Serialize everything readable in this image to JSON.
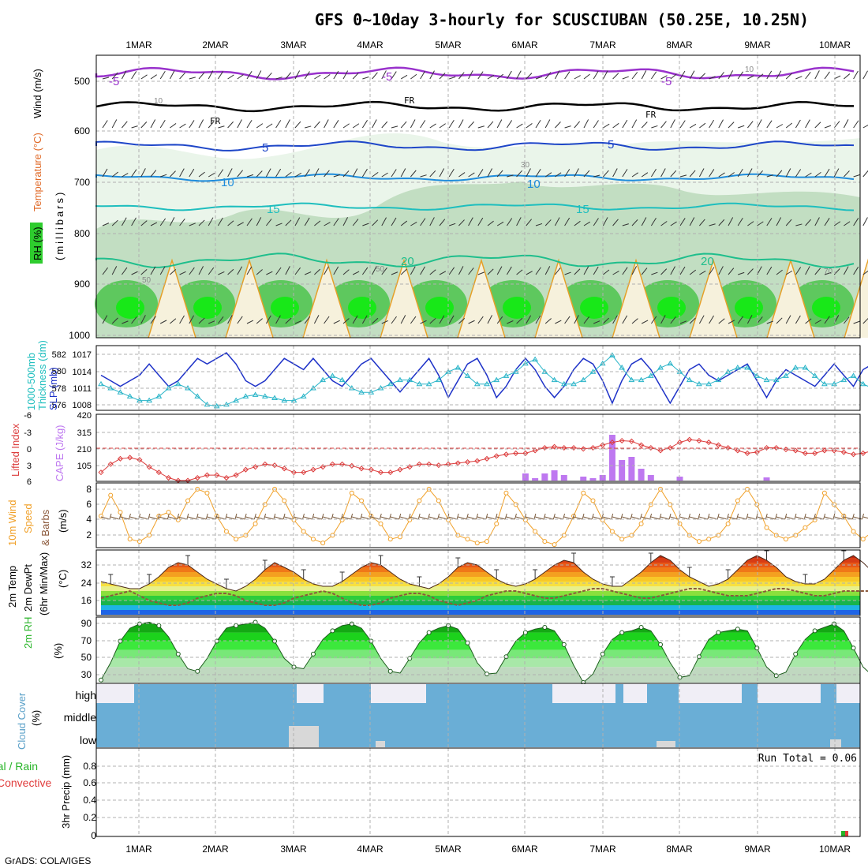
{
  "title": "GFS 0~10day 3-hourly for SCUSCIUBAN (50.25E, 10.25N)",
  "credit": "GrADS: COLA/IGES",
  "run_total": "Run Total = 0.06",
  "colors": {
    "frame": "#000000",
    "grid": "#b0b0b0",
    "rh_light": "#e8f4e8",
    "rh_mid": "#b8d8b8",
    "rh_dark": "#4cc44c",
    "rh_bright": "#18e818",
    "temp_m5": "#9932cc",
    "temp_fr": "#000000",
    "temp_5": "#1e46c8",
    "temp_10": "#1e8cdc",
    "temp_15": "#1ebebe",
    "temp_20": "#1ebe8c",
    "temp_25": "#e6a028",
    "temp_30": "#d22896",
    "slp": "#1e32c8",
    "thickness": "#28b4c8",
    "lifted_index": "#dc3c3c",
    "cape": "#be78f0",
    "wind_speed": "#f0a028",
    "wind_barbs": "#7a5a3c",
    "dewpoint": "#8c5a3c",
    "rh2m": "#28c828",
    "cloud": "#6aaed6",
    "precip_total": "#28b428",
    "precip_conv": "#e03c3c"
  },
  "date_labels": [
    "1MAR",
    "2MAR",
    "3MAR",
    "4MAR",
    "5MAR",
    "6MAR",
    "7MAR",
    "8MAR",
    "9MAR",
    "10MAR"
  ],
  "panels": {
    "profile": {
      "ylabel_wind": "Wind (m/s)",
      "ylabel_temp": "Temperature (°C)",
      "ylabel_rh": "RH (%)",
      "ylabel_mb": "(millibars)",
      "levels": [
        "500",
        "600",
        "700",
        "800",
        "900",
        "1000"
      ],
      "contour_labels": [
        "-5",
        "FR",
        "5",
        "10",
        "15",
        "20"
      ],
      "rh_labels": [
        "10",
        "30",
        "50",
        "70"
      ]
    },
    "slp": {
      "ylabel_a": "1000-500mb",
      "ylabel_b": "Thickness (dm)",
      "ylabel_c": "SLP (mb)",
      "left_ticks": [
        "582",
        "580",
        "578",
        "576"
      ],
      "right_ticks": [
        "1017",
        "1014",
        "1011",
        "1008"
      ]
    },
    "cape": {
      "ylabel_a": "Lifted Index",
      "ylabel_b": "CAPE (J/kg)",
      "left_ticks": [
        "-6",
        "-3",
        "0",
        "3",
        "6"
      ],
      "right_ticks": [
        "420",
        "315",
        "210",
        "105"
      ]
    },
    "wind": {
      "ylabel_a": "10m Wind",
      "ylabel_b": "Speed",
      "ylabel_c": "& Barbs",
      "ylabel_d": "(m/s)",
      "ticks": [
        "8",
        "6",
        "4",
        "2"
      ]
    },
    "temp": {
      "ylabel_a": "2m Temp",
      "ylabel_b": "2m DewPt",
      "ylabel_c": "(6hr Min/Max)",
      "ylabel_d": "(°C)",
      "ticks": [
        "32",
        "24",
        "16"
      ]
    },
    "rh": {
      "ylabel_a": "2m RH",
      "ylabel_b": "(%)",
      "ticks": [
        "90",
        "70",
        "50",
        "30"
      ]
    },
    "cloud": {
      "ylabel_a": "Cloud Cover",
      "ylabel_b": "(%)",
      "levels": [
        "high",
        "middle",
        "low"
      ]
    },
    "precip": {
      "ylabel_a": "Total / Rain",
      "ylabel_b": "Convective",
      "ylabel_c": "3hr Precip (mm)",
      "ticks": [
        "0.8",
        "0.6",
        "0.4",
        "0.2",
        "0"
      ]
    }
  },
  "chart_data": [
    {
      "type": "line",
      "title": "1000-500mb Thickness (dm) / SLP (mb)",
      "x_unit": "3-hourly steps from 00Z 1MAR",
      "series": [
        {
          "name": "SLP (mb)",
          "axis": "right",
          "ylim": [
            1007,
            1018
          ],
          "values": [
            1013,
            1012,
            1011,
            1012,
            1013,
            1015,
            1013,
            1011,
            1012,
            1014,
            1016,
            1015,
            1016,
            1017,
            1015,
            1012,
            1011,
            1012,
            1014,
            1016,
            1015,
            1014,
            1016,
            1014,
            1012,
            1011,
            1013,
            1015,
            1016,
            1014,
            1012,
            1010,
            1012,
            1014,
            1016,
            1013,
            1009,
            1012,
            1015,
            1016,
            1013,
            1009,
            1011,
            1014,
            1016,
            1014,
            1011,
            1009,
            1011,
            1014,
            1016,
            1015,
            1012,
            1008,
            1012,
            1015,
            1016,
            1014,
            1011,
            1008,
            1011,
            1014,
            1015,
            1013,
            1012,
            1013,
            1014,
            1015,
            1012,
            1009,
            1012,
            1014,
            1013,
            1012,
            1011,
            1013,
            1015,
            1013,
            1011,
            1014,
            1015,
            1016
          ]
        },
        {
          "name": "Thickness (dm)",
          "axis": "left",
          "ylim": [
            575.5,
            583
          ],
          "values": [
            578.5,
            578,
            577.5,
            577,
            576.5,
            576.5,
            577,
            578,
            578.5,
            578,
            577,
            576,
            575.8,
            576,
            576.5,
            577,
            577.2,
            577,
            576.8,
            576.5,
            576.5,
            577,
            578,
            579,
            579.5,
            579,
            578,
            577.5,
            577.5,
            578,
            578.5,
            579,
            579,
            578.5,
            578.5,
            579,
            580,
            580.5,
            579.5,
            578.5,
            578.5,
            579,
            579.5,
            580,
            581,
            581.5,
            580,
            579,
            578.5,
            578.5,
            579,
            580,
            581,
            582,
            580.5,
            579,
            579,
            579.5,
            580.5,
            581,
            580,
            579,
            578.5,
            578.5,
            579,
            580,
            580.5,
            580.5,
            579.5,
            579,
            579,
            579.5,
            580.5,
            580.5,
            579.5,
            578.5,
            578.5,
            579,
            579.5,
            578.5,
            578,
            578.5
          ]
        }
      ]
    },
    {
      "type": "bar",
      "title": "CAPE (J/kg)",
      "categories": [
        "6MAR 15Z",
        "6MAR 18Z",
        "6MAR 21Z",
        "7MAR 00Z",
        "7MAR 03Z",
        "7MAR 09Z",
        "7MAR 12Z",
        "7MAR 15Z",
        "7MAR 18Z",
        "7MAR 21Z",
        "8MAR 00Z",
        "8MAR 03Z",
        "8MAR 06Z",
        "8MAR 15Z",
        "9MAR 12Z"
      ],
      "values": [
        45,
        15,
        45,
        65,
        35,
        25,
        15,
        35,
        290,
        130,
        150,
        75,
        35,
        25,
        20
      ],
      "ylim": [
        0,
        420
      ]
    },
    {
      "type": "line",
      "title": "Lifted Index",
      "ylim": [
        6,
        -6
      ],
      "values": [
        4.5,
        3,
        2,
        1.8,
        2.2,
        3.5,
        4.5,
        5.5,
        6,
        6,
        5.5,
        5,
        5,
        5.5,
        5,
        4,
        3.5,
        3,
        3.2,
        3.8,
        4.5,
        4.5,
        4,
        3.5,
        3,
        3,
        3.3,
        3.8,
        4,
        4.5,
        4.5,
        4,
        3.5,
        3,
        3,
        3.2,
        3,
        2.8,
        2.6,
        2.4,
        2,
        1.5,
        1.2,
        1,
        1,
        0.5,
        0,
        -0.2,
        0,
        0,
        0.2,
        0,
        -0.5,
        -1,
        -1.3,
        -1.2,
        -0.5,
        0,
        0.5,
        0,
        -1,
        -1.5,
        -1.3,
        -1,
        -0.5,
        0,
        0.5,
        1,
        0.8,
        0,
        0,
        0.3,
        0.5,
        1,
        1,
        0.5,
        0.5,
        0.8,
        1.2,
        1,
        0.5,
        0.5
      ]
    },
    {
      "type": "line",
      "title": "10m Wind Speed (m/s)",
      "ylim": [
        0.5,
        8.7
      ],
      "values": [
        4.5,
        7.2,
        5,
        1.5,
        1.2,
        2,
        4.5,
        5,
        4,
        6.5,
        8,
        7.5,
        4.5,
        2.5,
        1.5,
        2,
        3.5,
        6,
        8,
        6.5,
        4,
        2.5,
        1.5,
        1,
        2,
        4,
        7.5,
        6.5,
        4.5,
        3.5,
        1.5,
        1.8,
        4,
        6.5,
        8,
        6.5,
        4,
        2,
        1.5,
        1,
        1.2,
        3.5,
        7.5,
        6,
        4,
        2.5,
        1.2,
        0.8,
        2,
        4.5,
        7.5,
        6.5,
        4,
        2.5,
        1.5,
        2,
        3.5,
        6,
        8,
        6,
        3.5,
        2,
        1.2,
        1.5,
        2,
        3.5,
        6.5,
        8,
        6,
        3,
        2,
        1.5,
        2,
        3,
        4,
        7.5,
        6,
        4.5,
        2.5,
        1.5,
        2.5,
        3
      ]
    },
    {
      "type": "area",
      "title": "2m Temp / 2m DewPt (°C)",
      "ylim": [
        10,
        37
      ],
      "series": [
        {
          "name": "2m Temp",
          "values": [
            24,
            23,
            22,
            21,
            21,
            23,
            26,
            30,
            32,
            31,
            28,
            25,
            23,
            21,
            20,
            22,
            25,
            29,
            32,
            30,
            28,
            25,
            23,
            22,
            22,
            24,
            27,
            30,
            32,
            31,
            28,
            25,
            23,
            22,
            21,
            23,
            26,
            30,
            32,
            31,
            28,
            25,
            23,
            22,
            23,
            25,
            28,
            31,
            33,
            32,
            28,
            25,
            23,
            22,
            22,
            25,
            28,
            32,
            35,
            33,
            29,
            26,
            24,
            22,
            23,
            25,
            29,
            33,
            35,
            33,
            30,
            26,
            24,
            23,
            23,
            25,
            29,
            33,
            35,
            32,
            28,
            25
          ]
        },
        {
          "name": "2m DewPt",
          "values": [
            17,
            18,
            19,
            20,
            18,
            16,
            15,
            14,
            14,
            15,
            17,
            18,
            19,
            19,
            18,
            16,
            15,
            14,
            14,
            15,
            17,
            18,
            19,
            20,
            19,
            17,
            15,
            14,
            14,
            15,
            17,
            18,
            19,
            19,
            18,
            16,
            15,
            14,
            15,
            16,
            18,
            19,
            20,
            20,
            19,
            18,
            17,
            17,
            18,
            19,
            20,
            21,
            21,
            20,
            19,
            18,
            17,
            17,
            18,
            19,
            20,
            21,
            21,
            20,
            19,
            18,
            18,
            18,
            19,
            20,
            21,
            21,
            20,
            19,
            18,
            18,
            19,
            20,
            20,
            20,
            20,
            20
          ]
        }
      ]
    },
    {
      "type": "area",
      "title": "2m RH (%)",
      "ylim": [
        22,
        97
      ],
      "values": [
        25,
        45,
        70,
        85,
        90,
        92,
        88,
        75,
        55,
        38,
        35,
        50,
        70,
        85,
        88,
        90,
        92,
        85,
        70,
        50,
        40,
        38,
        55,
        72,
        82,
        88,
        90,
        85,
        70,
        50,
        35,
        33,
        50,
        68,
        80,
        85,
        88,
        84,
        68,
        45,
        32,
        33,
        52,
        70,
        80,
        84,
        86,
        82,
        66,
        42,
        22,
        32,
        55,
        72,
        80,
        82,
        86,
        82,
        66,
        45,
        28,
        30,
        52,
        72,
        80,
        82,
        84,
        82,
        62,
        40,
        30,
        34,
        55,
        72,
        82,
        86,
        90,
        82,
        62,
        40,
        30,
        32,
        50,
        68,
        80,
        85
      ]
    }
  ]
}
